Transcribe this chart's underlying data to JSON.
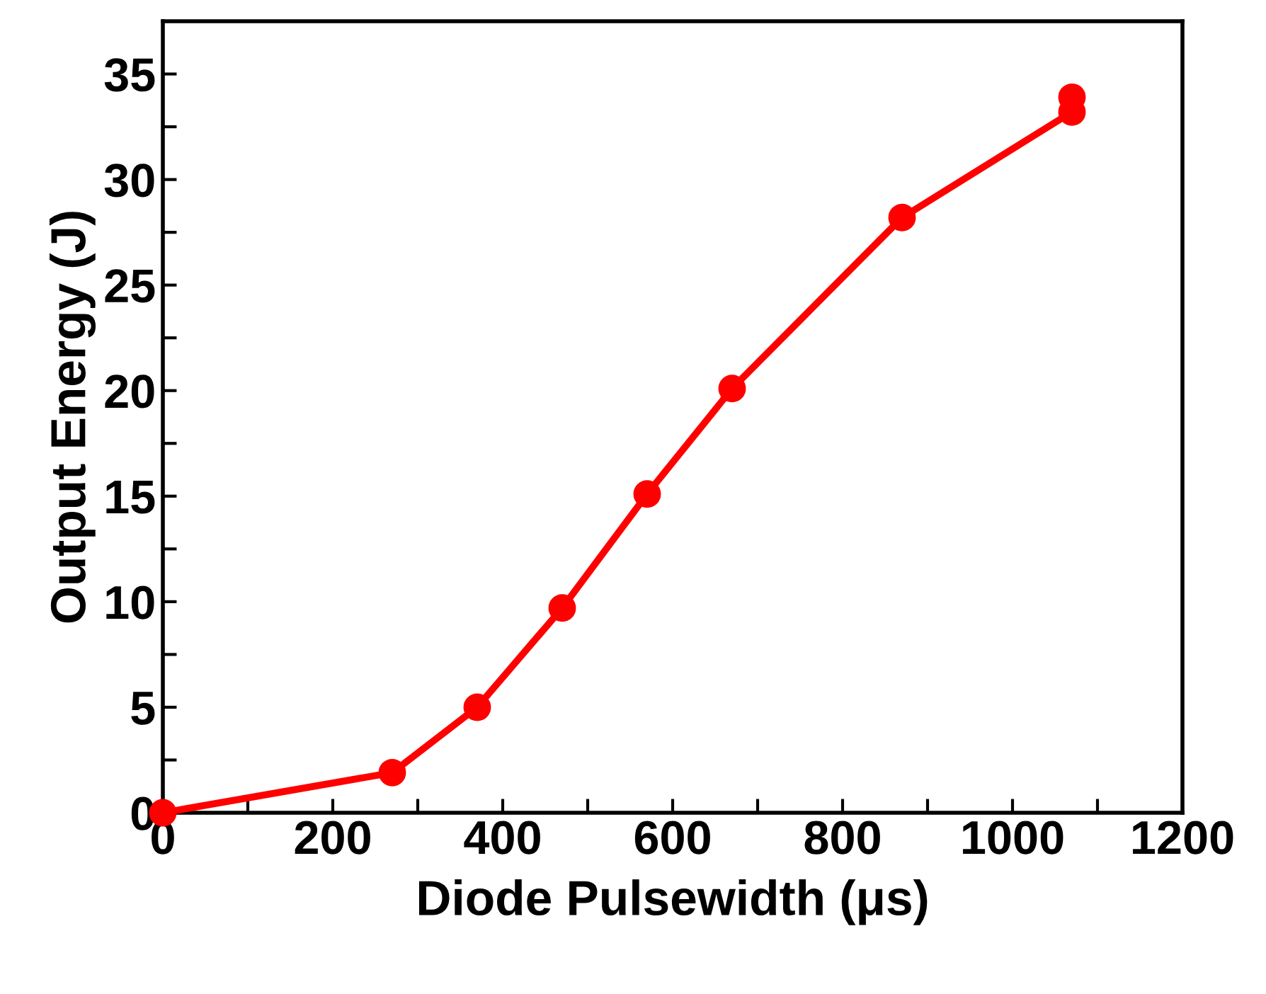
{
  "chart_data": {
    "type": "line",
    "xlabel": "Diode Pulsewidth (μs)",
    "ylabel": "Output Energy (J)",
    "x": [
      0,
      270,
      370,
      470,
      570,
      670,
      870,
      1070,
      1070
    ],
    "series": [
      {
        "color": "#ff0000",
        "values": [
          0,
          1.9,
          5.0,
          9.7,
          15.1,
          20.1,
          28.2,
          33.2,
          33.9
        ]
      }
    ],
    "xlim": [
      0,
      1200
    ],
    "ylim": [
      0,
      37.5
    ],
    "xticks": [
      0,
      {
        "value": 100,
        "label": null
      },
      200,
      {
        "value": 300,
        "label": null
      },
      400,
      {
        "value": 500,
        "label": null
      },
      600,
      {
        "value": 700,
        "label": null
      },
      800,
      {
        "value": 900,
        "label": null
      },
      1000,
      {
        "value": 1100,
        "label": null
      },
      1200
    ],
    "yticks": [
      0,
      {
        "value": 2.5,
        "label": null
      },
      5,
      {
        "value": 7.5,
        "label": null
      },
      10,
      {
        "value": 12.5,
        "label": null
      },
      15,
      {
        "value": 17.5,
        "label": null
      },
      20,
      {
        "value": 22.5,
        "label": null
      },
      25,
      {
        "value": 27.5,
        "label": null
      },
      30,
      {
        "value": 32.5,
        "label": null
      },
      35
    ],
    "marker": "circle",
    "line_style": "solid",
    "grid": false,
    "legend": false
  }
}
